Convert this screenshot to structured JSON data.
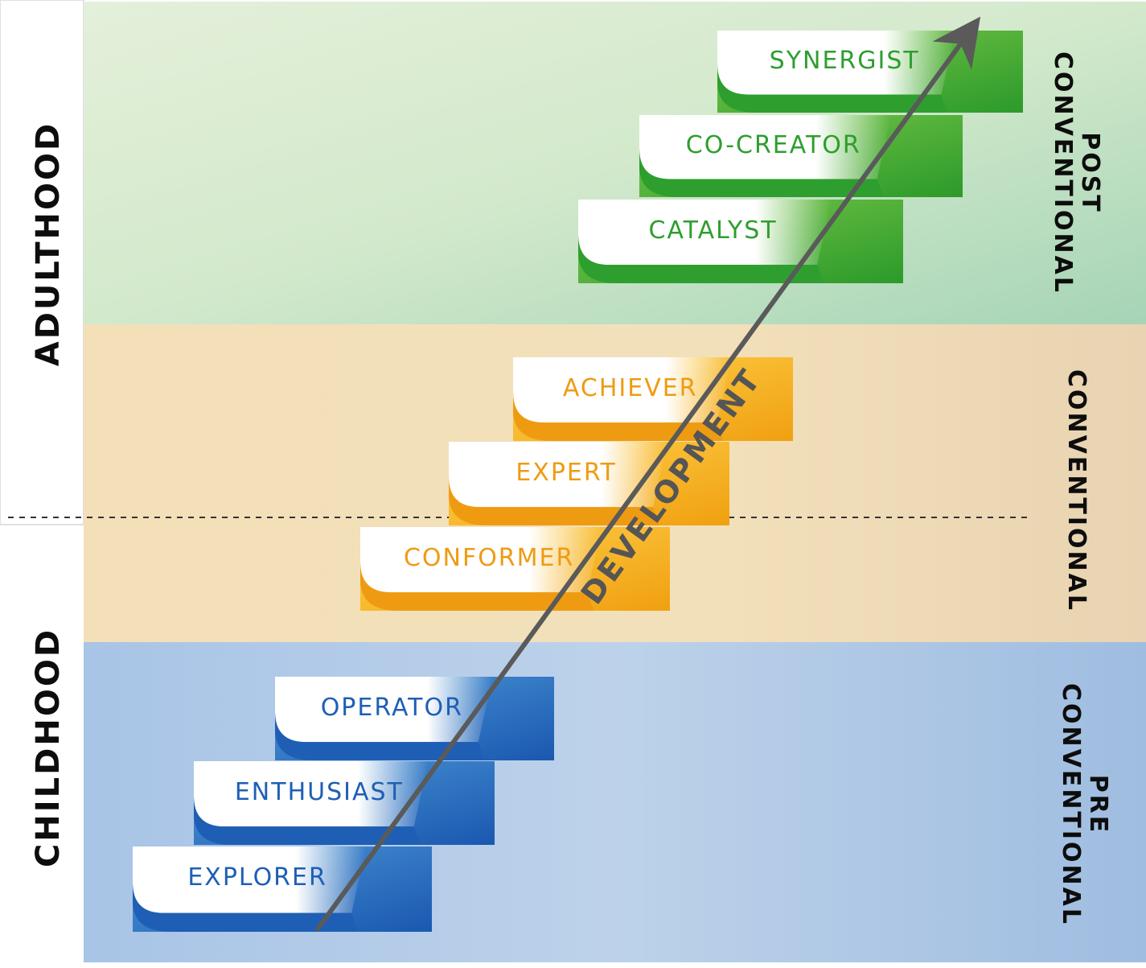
{
  "life_stages": {
    "adulthood": "ADULTHOOD",
    "childhood": "CHILDHOOD"
  },
  "tiers": {
    "post": {
      "label_line1": "POST",
      "label_line2": "CONVENTIONAL",
      "color": "#2e9e2e"
    },
    "conventional": {
      "label_line1": "CONVENTIONAL",
      "color": "#ef9b12"
    },
    "pre": {
      "label_line1": "PRE",
      "label_line2": "CONVENTIONAL",
      "color": "#1e5fb5"
    }
  },
  "stages": [
    {
      "label": "SYNERGIST",
      "tier": "post"
    },
    {
      "label": "CO-CREATOR",
      "tier": "post"
    },
    {
      "label": "CATALYST",
      "tier": "post"
    },
    {
      "label": "ACHIEVER",
      "tier": "conventional"
    },
    {
      "label": "EXPERT",
      "tier": "conventional"
    },
    {
      "label": "CONFORMER",
      "tier": "conventional"
    },
    {
      "label": "OPERATOR",
      "tier": "pre"
    },
    {
      "label": "ENTHUSIAST",
      "tier": "pre"
    },
    {
      "label": "EXPLORER",
      "tier": "pre"
    }
  ],
  "arrow": {
    "label": "DEVELOPMENT"
  },
  "colors": {
    "post_band": "#cfe6c9",
    "conventional_band": "#f2dcb2",
    "pre_band": "#b3cde6",
    "arrow": "#5a5a5a"
  }
}
